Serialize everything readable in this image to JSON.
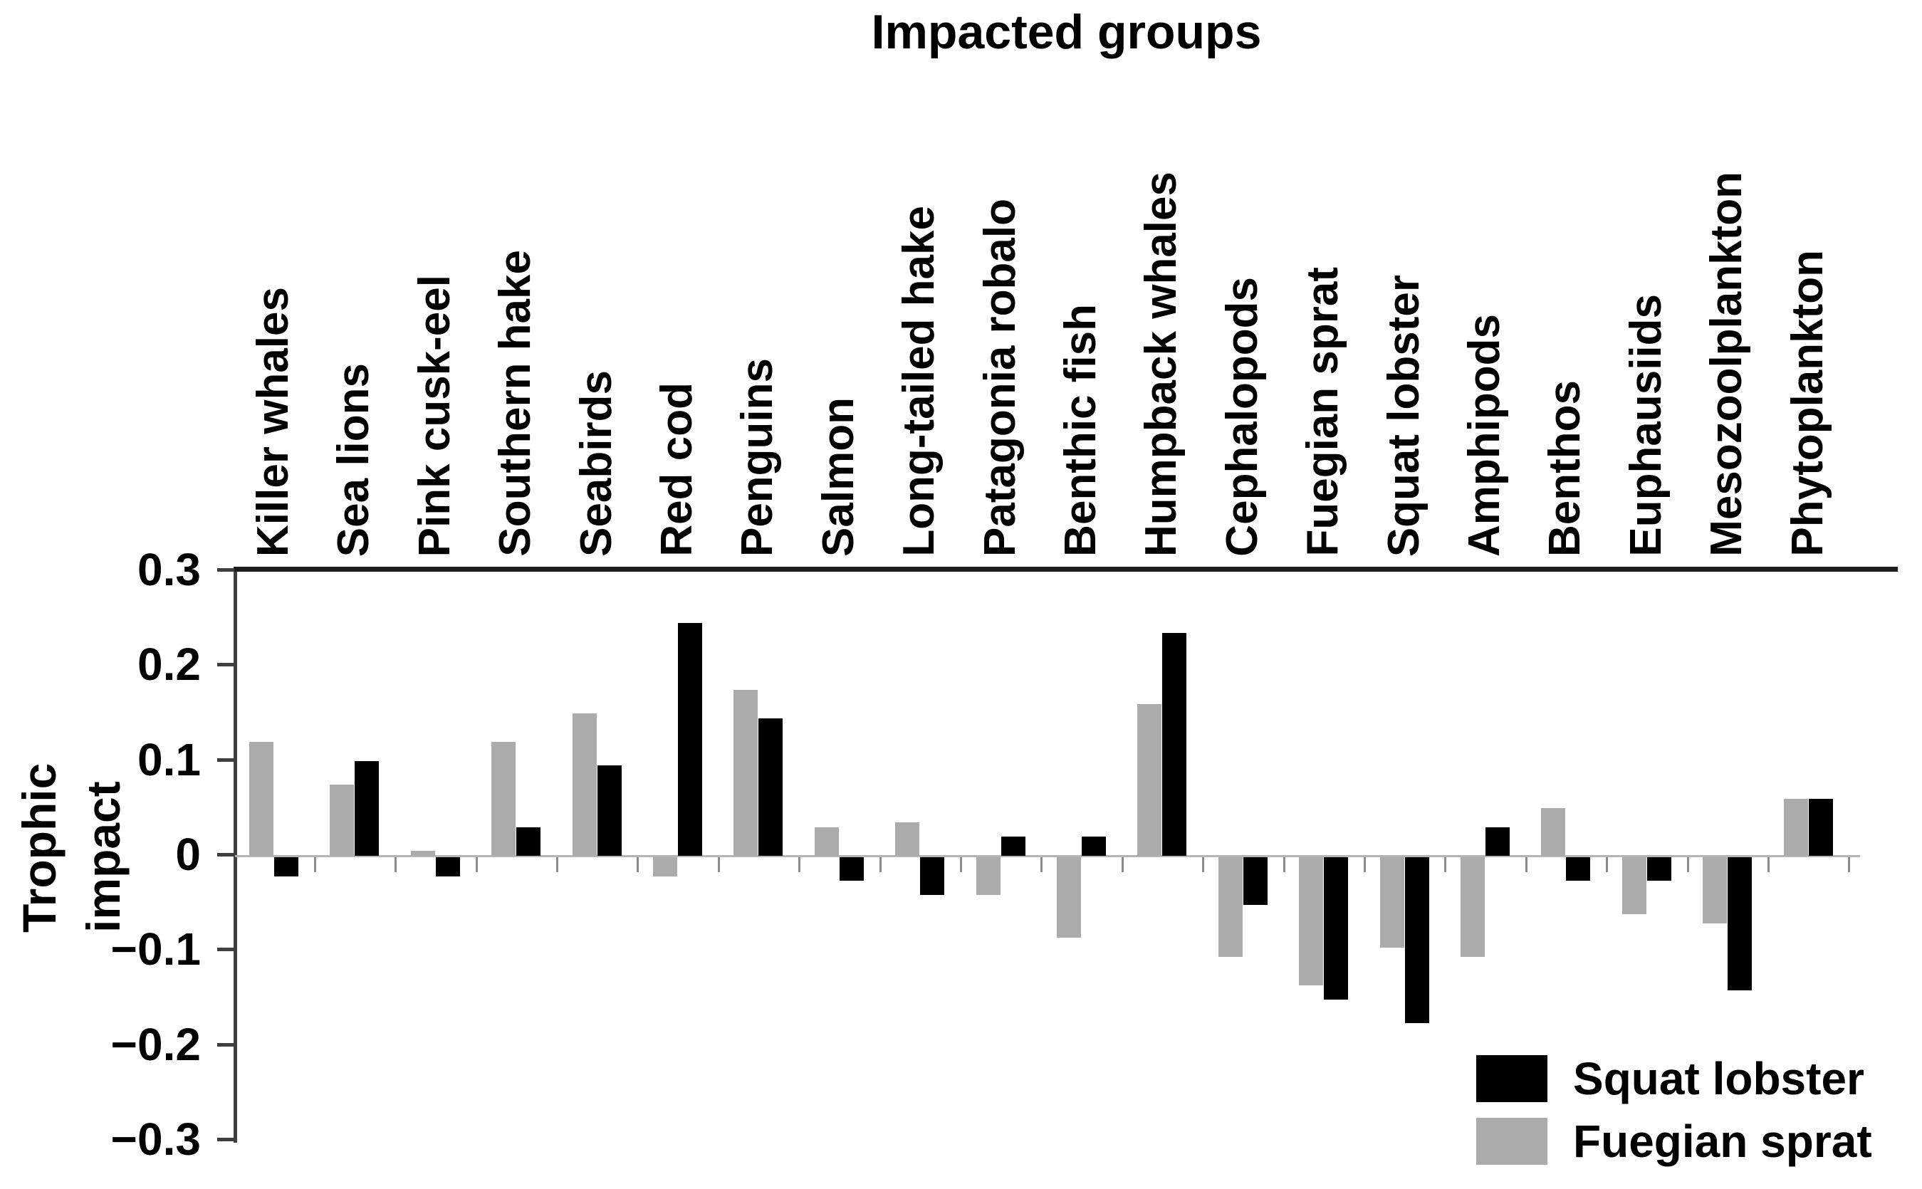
{
  "title": "Impacted groups",
  "y_axis": {
    "label": "Trophic impact",
    "tick_labels": [
      "0.3",
      "0.2",
      "0.1",
      "0",
      "−0.1",
      "−0.2",
      "−0.3"
    ],
    "tick_values": [
      0.3,
      0.2,
      0.1,
      0,
      -0.1,
      -0.2,
      -0.3
    ]
  },
  "legend": {
    "items": [
      {
        "label": "Squat lobster",
        "color": "#000000"
      },
      {
        "label": "Fuegian sprat",
        "color": "#ababab"
      }
    ]
  },
  "chart_data": {
    "type": "bar",
    "title": "Impacted groups",
    "xlabel": "Impacted groups",
    "ylabel": "Trophic impact",
    "ylim": [
      -0.3,
      0.3
    ],
    "grid": false,
    "legend_position": "bottom-right",
    "categories": [
      "Killer whales",
      "Sea lions",
      "Pink cusk-eel",
      "Southern hake",
      "Seabirds",
      "Red cod",
      "Penguins",
      "Salmon",
      "Long-tailed hake",
      "Patagonia robalo",
      "Benthic fish",
      "Humpback whales",
      "Cephalopods",
      "Fuegian sprat",
      "Squat lobster",
      "Amphipods",
      "Benthos",
      "Euphausiids",
      "Mesozoolplankton",
      "Phytoplankton"
    ],
    "series": [
      {
        "name": "Fuegian sprat",
        "color": "#ababab",
        "values": [
          0.12,
          0.075,
          0.005,
          0.12,
          0.15,
          -0.02,
          0.175,
          0.03,
          0.035,
          -0.04,
          -0.085,
          0.16,
          -0.105,
          -0.135,
          -0.095,
          -0.105,
          0.05,
          -0.06,
          -0.07,
          0.06
        ]
      },
      {
        "name": "Squat lobster",
        "color": "#000000",
        "values": [
          -0.02,
          0.1,
          -0.02,
          0.03,
          0.095,
          0.245,
          0.145,
          -0.025,
          -0.04,
          0.02,
          0.02,
          0.235,
          -0.05,
          -0.15,
          -0.175,
          0.03,
          -0.025,
          -0.025,
          -0.14,
          0.06
        ]
      }
    ]
  }
}
